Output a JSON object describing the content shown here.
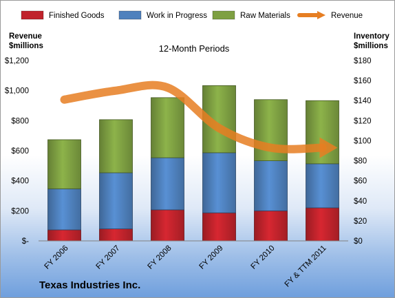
{
  "chart_data": {
    "type": "bar",
    "title": "12-Month Periods",
    "subtitle": "Texas Industries Inc.",
    "categories": [
      "FY 2006",
      "FY 2007",
      "FY 2008",
      "FY 2009",
      "FY 2010",
      "FY & TTM 2011"
    ],
    "stacked": true,
    "left_axis": {
      "title": [
        "Revenue",
        "$millions"
      ],
      "ylim": [
        0,
        1200
      ],
      "ticks": [
        0,
        200,
        400,
        600,
        800,
        1000,
        1200
      ],
      "tick_labels": [
        "$-",
        "$200",
        "$400",
        "$600",
        "$800",
        "$1,000",
        "$1,200"
      ]
    },
    "right_axis": {
      "title": [
        "Inventory",
        "$millions"
      ],
      "ylim": [
        0,
        180
      ],
      "ticks": [
        0,
        20,
        40,
        60,
        80,
        100,
        120,
        140,
        160,
        180
      ],
      "tick_labels": [
        "$0",
        "$20",
        "$40",
        "$60",
        "$80",
        "$100",
        "$120",
        "$140",
        "$160",
        "$180"
      ]
    },
    "series": [
      {
        "name": "Finished Goods",
        "type": "bar",
        "axis": "right",
        "color": "#c0232c",
        "values": [
          11,
          12,
          31,
          28,
          30,
          33
        ]
      },
      {
        "name": "Work in Progress",
        "type": "bar",
        "axis": "right",
        "color": "#4f81bd",
        "values": [
          41,
          56,
          52,
          60,
          50,
          44
        ]
      },
      {
        "name": "Raw Materials",
        "type": "bar",
        "axis": "right",
        "color": "#7ea042",
        "values": [
          49,
          53,
          60,
          67,
          61,
          63
        ]
      },
      {
        "name": "Revenue",
        "type": "line",
        "axis": "left",
        "color": "#e67e22",
        "values": [
          940,
          1000,
          1020,
          750,
          620,
          620
        ]
      }
    ],
    "legend_position": "top",
    "grid": false
  }
}
